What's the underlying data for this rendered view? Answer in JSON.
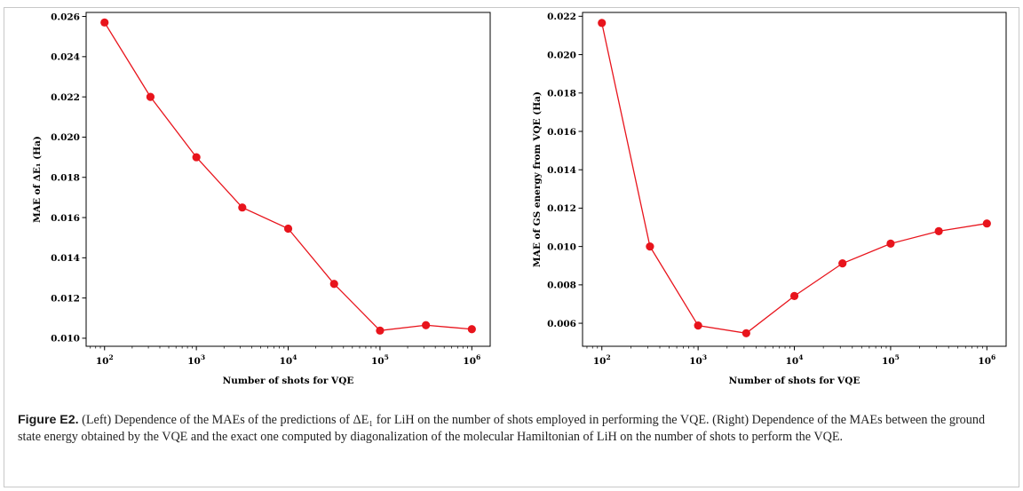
{
  "figure": {
    "label": "Figure E2.",
    "caption": "(Left) Dependence of the MAEs of the predictions of ΔE₁ for LiH on the number of shots employed in performing the VQE. (Right) Dependence of the MAEs between the ground state energy obtained by the VQE and the exact one computed by diagonalization of the molecular Hamiltonian of LiH on the number of shots to perform the VQE."
  },
  "colors": {
    "series": "#e8141c",
    "axis": "#000000"
  },
  "chart_data": [
    {
      "type": "line",
      "title": "",
      "xlabel": "Number of shots for VQE",
      "ylabel": "MAE of ΔE₁ (Ha)",
      "xscale": "log",
      "xlim": [
        63,
        1585000
      ],
      "ylim": [
        0.0096,
        0.0262
      ],
      "xticks": [
        100,
        1000,
        10000,
        100000,
        1000000
      ],
      "xtick_labels": [
        [
          "10",
          "2"
        ],
        [
          "10",
          "3"
        ],
        [
          "10",
          "4"
        ],
        [
          "10",
          "5"
        ],
        [
          "10",
          "6"
        ]
      ],
      "yticks": [
        0.01,
        0.012,
        0.014,
        0.016,
        0.018,
        0.02,
        0.022,
        0.024,
        0.026
      ],
      "ytick_labels": [
        "0.010",
        "0.012",
        "0.014",
        "0.016",
        "0.018",
        "0.020",
        "0.022",
        "0.024",
        "0.026"
      ],
      "grid": false,
      "series": [
        {
          "x": [
            100,
            316,
            1000,
            3162,
            10000,
            31623,
            100000,
            316228,
            1000000
          ],
          "y": [
            0.0257,
            0.022,
            0.019,
            0.0165,
            0.01545,
            0.0127,
            0.01038,
            0.01065,
            0.01045
          ]
        }
      ]
    },
    {
      "type": "line",
      "title": "",
      "xlabel": "Number of shots for VQE",
      "ylabel": "MAE of GS energy from VQE (Ha)",
      "xscale": "log",
      "xlim": [
        63,
        1585000
      ],
      "ylim": [
        0.0048,
        0.0222
      ],
      "xticks": [
        100,
        1000,
        10000,
        100000,
        1000000
      ],
      "xtick_labels": [
        [
          "10",
          "2"
        ],
        [
          "10",
          "3"
        ],
        [
          "10",
          "4"
        ],
        [
          "10",
          "5"
        ],
        [
          "10",
          "6"
        ]
      ],
      "yticks": [
        0.006,
        0.008,
        0.01,
        0.012,
        0.014,
        0.016,
        0.018,
        0.02,
        0.022
      ],
      "ytick_labels": [
        "0.006",
        "0.008",
        "0.010",
        "0.012",
        "0.014",
        "0.016",
        "0.018",
        "0.020",
        "0.022"
      ],
      "grid": false,
      "series": [
        {
          "x": [
            100,
            316,
            1000,
            3162,
            10000,
            31623,
            100000,
            316228,
            1000000
          ],
          "y": [
            0.02165,
            0.01,
            0.00588,
            0.00548,
            0.00742,
            0.00912,
            0.01015,
            0.0108,
            0.0112
          ]
        }
      ]
    }
  ]
}
